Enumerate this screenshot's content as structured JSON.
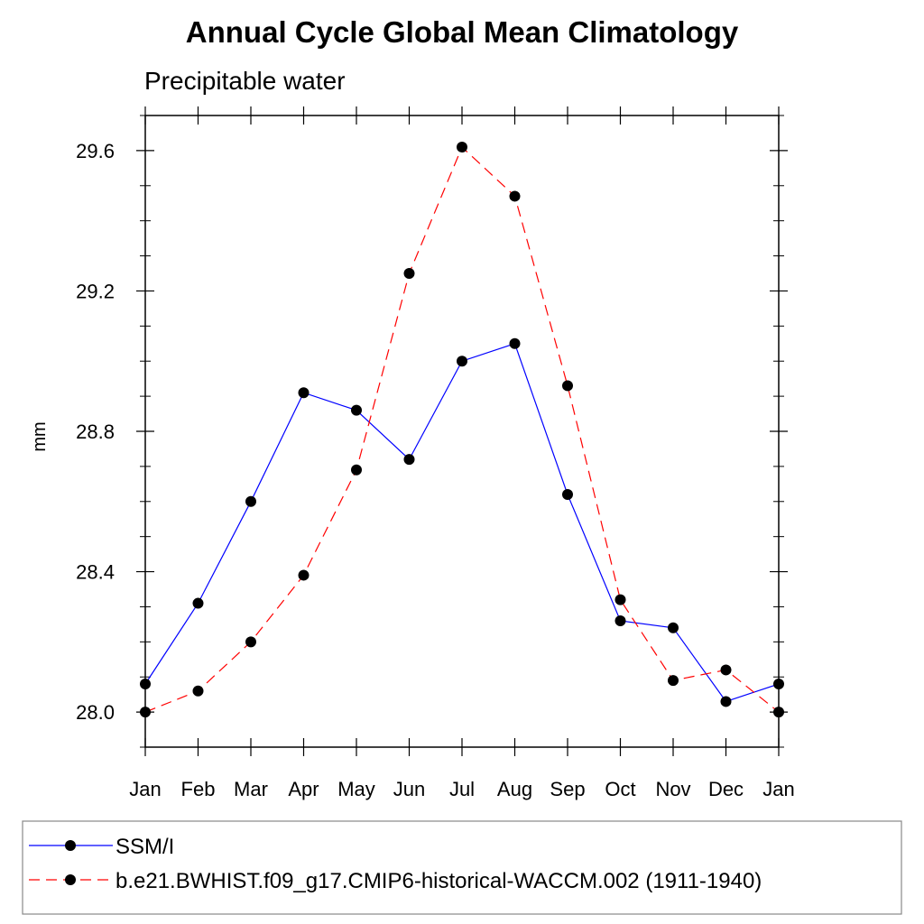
{
  "chart_data": {
    "type": "line",
    "title": "Annual Cycle Global Mean Climatology",
    "subtitle": "Precipitable water",
    "xlabel": "",
    "ylabel": "mm",
    "categories": [
      "Jan",
      "Feb",
      "Mar",
      "Apr",
      "May",
      "Jun",
      "Jul",
      "Aug",
      "Sep",
      "Oct",
      "Nov",
      "Dec",
      "Jan"
    ],
    "ylim": [
      27.9,
      29.7
    ],
    "yticks": [
      28.0,
      28.4,
      28.8,
      29.2,
      29.6
    ],
    "ytick_labels": [
      "28.0",
      "28.4",
      "28.8",
      "29.2",
      "29.6"
    ],
    "y_minor_step": 0.1,
    "legend_position": "bottom",
    "series": [
      {
        "name": "SSM/I",
        "color": "#0000ff",
        "style": "solid",
        "marker": "circle",
        "values": [
          28.08,
          28.31,
          28.6,
          28.91,
          28.86,
          28.72,
          29.0,
          29.05,
          28.62,
          28.26,
          28.24,
          28.03,
          28.08
        ]
      },
      {
        "name": "b.e21.BWHIST.f09_g17.CMIP6-historical-WACCM.002 (1911-1940)",
        "color": "#ff0000",
        "style": "dashed",
        "marker": "circle",
        "values": [
          28.0,
          28.06,
          28.2,
          28.39,
          28.69,
          29.25,
          29.61,
          29.47,
          28.93,
          28.32,
          28.09,
          28.12,
          28.0
        ]
      }
    ]
  }
}
